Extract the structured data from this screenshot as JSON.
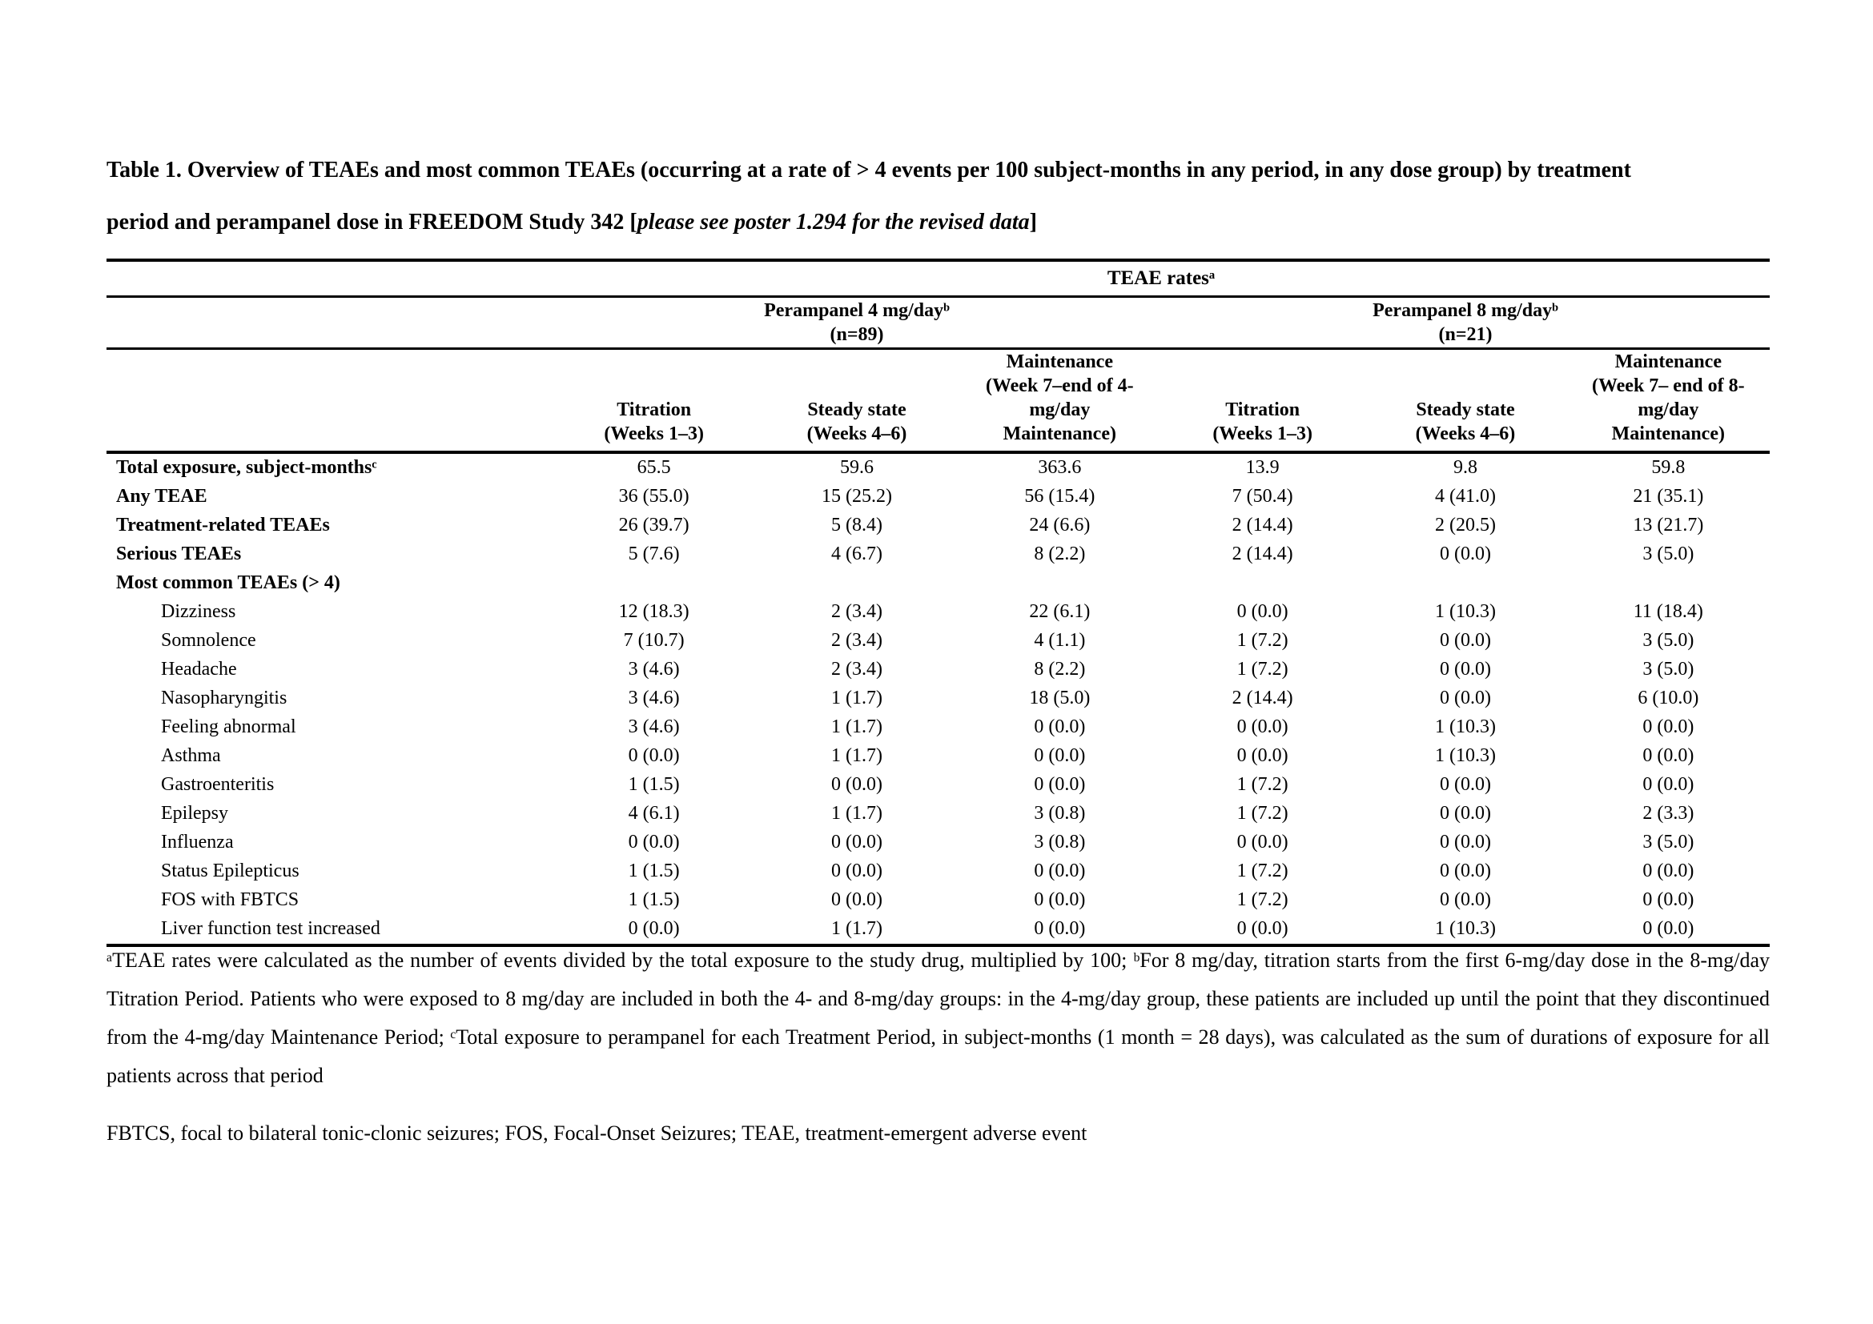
{
  "page": {
    "title_prefix": "Table 1. Overview of TEAEs and most common TEAEs (occurring at a rate of > 4 events per 100 subject-months in any period, in any dose group) by treatment period and perampanel dose in FREEDOM Study 342 [",
    "title_italic": "please see poster 1.294 for the revised data",
    "title_suffix": "]"
  },
  "table": {
    "top_header": "TEAE ratesᵃ",
    "group_headers": [
      {
        "label": "Perampanel 4 mg/dayᵇ",
        "sub": "(n=89)"
      },
      {
        "label": "Perampanel 8 mg/dayᵇ",
        "sub": "(n=21)"
      }
    ],
    "column_headers": [
      "Titration\n(Weeks 1–3)",
      "Steady state\n(Weeks 4–6)",
      "Maintenance\n(Week 7–end of 4-\nmg/day\nMaintenance)",
      "Titration\n(Weeks 1–3)",
      "Steady state\n(Weeks 4–6)",
      "Maintenance\n(Week 7– end of 8-\nmg/day\nMaintenance)"
    ],
    "rows": [
      {
        "label": "Total exposure, subject-monthsᶜ",
        "bold": true,
        "indent": false,
        "values": [
          "65.5",
          "59.6",
          "363.6",
          "13.9",
          "9.8",
          "59.8"
        ]
      },
      {
        "label": "Any TEAE",
        "bold": true,
        "indent": false,
        "values": [
          "36 (55.0)",
          "15 (25.2)",
          "56 (15.4)",
          "7 (50.4)",
          "4 (41.0)",
          "21 (35.1)"
        ]
      },
      {
        "label": "Treatment-related TEAEs",
        "bold": true,
        "indent": false,
        "values": [
          "26 (39.7)",
          "5 (8.4)",
          "24 (6.6)",
          "2 (14.4)",
          "2 (20.5)",
          "13 (21.7)"
        ]
      },
      {
        "label": "Serious TEAEs",
        "bold": true,
        "indent": false,
        "values": [
          "5 (7.6)",
          "4 (6.7)",
          "8 (2.2)",
          "2 (14.4)",
          "0 (0.0)",
          "3 (5.0)"
        ]
      },
      {
        "label": "Most common TEAEs (> 4)",
        "bold": true,
        "indent": false,
        "values": [
          "",
          "",
          "",
          "",
          "",
          ""
        ]
      },
      {
        "label": "Dizziness",
        "bold": false,
        "indent": true,
        "values": [
          "12 (18.3)",
          "2 (3.4)",
          "22 (6.1)",
          "0 (0.0)",
          "1 (10.3)",
          "11 (18.4)"
        ]
      },
      {
        "label": "Somnolence",
        "bold": false,
        "indent": true,
        "values": [
          "7 (10.7)",
          "2 (3.4)",
          "4 (1.1)",
          "1 (7.2)",
          "0 (0.0)",
          "3 (5.0)"
        ]
      },
      {
        "label": "Headache",
        "bold": false,
        "indent": true,
        "values": [
          "3 (4.6)",
          "2 (3.4)",
          "8 (2.2)",
          "1 (7.2)",
          "0 (0.0)",
          "3 (5.0)"
        ]
      },
      {
        "label": "Nasopharyngitis",
        "bold": false,
        "indent": true,
        "values": [
          "3 (4.6)",
          "1 (1.7)",
          "18 (5.0)",
          "2 (14.4)",
          "0 (0.0)",
          "6 (10.0)"
        ]
      },
      {
        "label": "Feeling abnormal",
        "bold": false,
        "indent": true,
        "values": [
          "3 (4.6)",
          "1 (1.7)",
          "0 (0.0)",
          "0 (0.0)",
          "1 (10.3)",
          "0 (0.0)"
        ]
      },
      {
        "label": "Asthma",
        "bold": false,
        "indent": true,
        "values": [
          "0 (0.0)",
          "1 (1.7)",
          "0 (0.0)",
          "0 (0.0)",
          "1 (10.3)",
          "0 (0.0)"
        ]
      },
      {
        "label": "Gastroenteritis",
        "bold": false,
        "indent": true,
        "values": [
          "1 (1.5)",
          "0 (0.0)",
          "0 (0.0)",
          "1 (7.2)",
          "0 (0.0)",
          "0 (0.0)"
        ]
      },
      {
        "label": "Epilepsy",
        "bold": false,
        "indent": true,
        "values": [
          "4 (6.1)",
          "1 (1.7)",
          "3 (0.8)",
          "1 (7.2)",
          "0 (0.0)",
          "2 (3.3)"
        ]
      },
      {
        "label": "Influenza",
        "bold": false,
        "indent": true,
        "values": [
          "0 (0.0)",
          "0 (0.0)",
          "3 (0.8)",
          "0 (0.0)",
          "0 (0.0)",
          "3 (5.0)"
        ]
      },
      {
        "label": "Status Epilepticus",
        "bold": false,
        "indent": true,
        "values": [
          "1 (1.5)",
          "0 (0.0)",
          "0 (0.0)",
          "1 (7.2)",
          "0 (0.0)",
          "0 (0.0)"
        ]
      },
      {
        "label": "FOS with FBTCS",
        "bold": false,
        "indent": true,
        "values": [
          "1 (1.5)",
          "0 (0.0)",
          "0 (0.0)",
          "1 (7.2)",
          "0 (0.0)",
          "0 (0.0)"
        ]
      },
      {
        "label": "Liver function test increased",
        "bold": false,
        "indent": true,
        "values": [
          "0 (0.0)",
          "1 (1.7)",
          "0 (0.0)",
          "0 (0.0)",
          "1 (10.3)",
          "0 (0.0)"
        ]
      }
    ]
  },
  "footnotes": {
    "body": "ᵃTEAE rates were calculated as the number of events divided by the total exposure to the study drug, multiplied by 100; ᵇFor 8 mg/day, titration starts from the first 6-mg/day dose in the 8-mg/day Titration Period. Patients who were exposed to 8 mg/day are included in both the 4- and 8-mg/day groups: in the 4-mg/day group, these patients are included up until the point that they discontinued from the 4-mg/day Maintenance Period; ᶜTotal exposure to perampanel for each Treatment Period, in subject-months (1 month = 28 days), was calculated as the sum of durations of exposure for all patients across that period",
    "abbreviations": "FBTCS, focal to bilateral tonic-clonic seizures; FOS, Focal-Onset Seizures; TEAE, treatment-emergent adverse event"
  }
}
